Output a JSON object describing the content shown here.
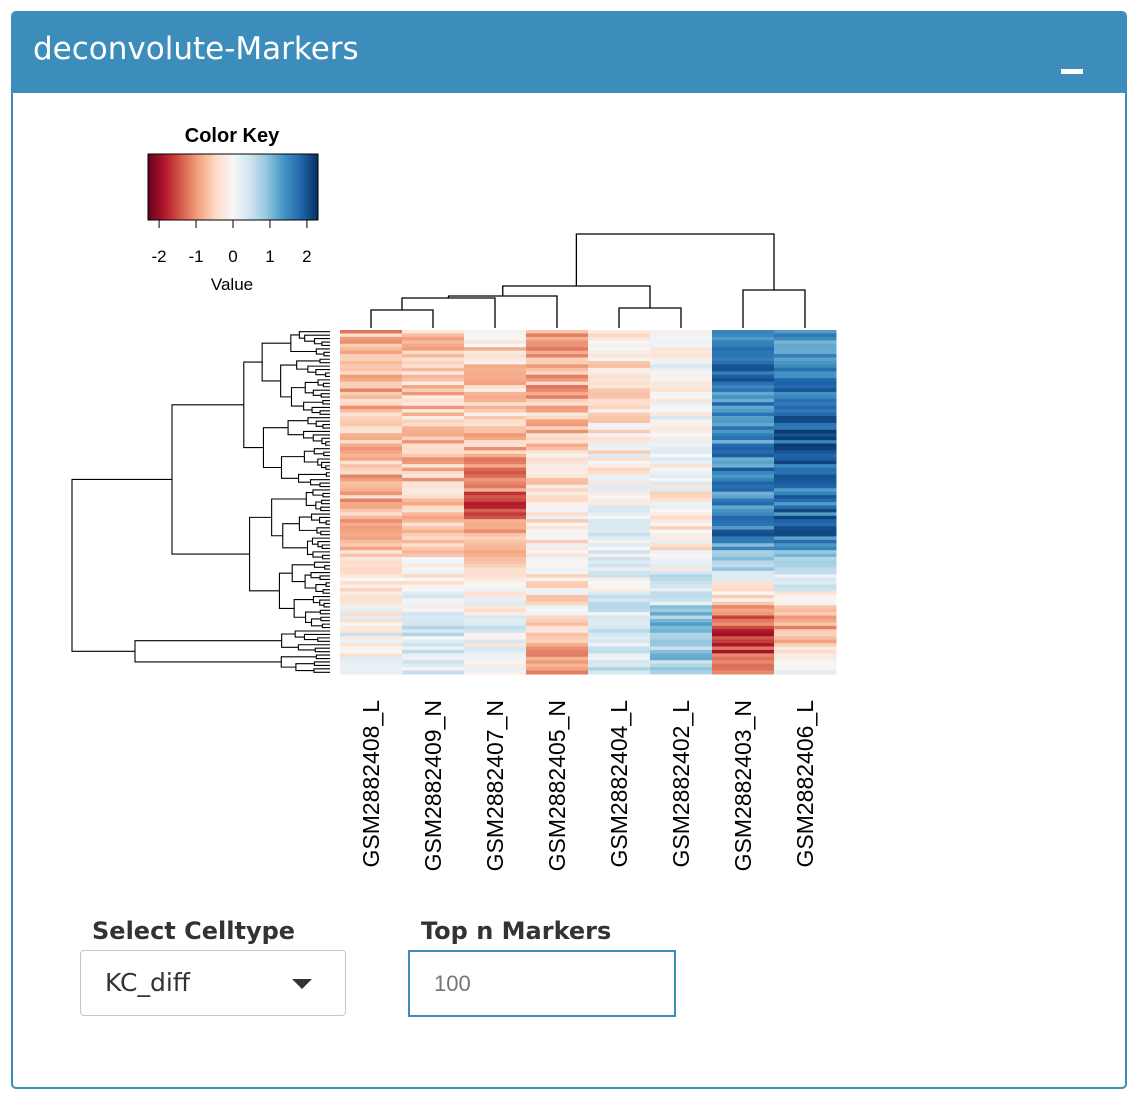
{
  "panel": {
    "title": "deconvolute-Markers",
    "collapse_icon": "minus-icon",
    "colors": {
      "header": "#3c8dbc",
      "accent": "#3c8dbc"
    }
  },
  "chart_data": {
    "type": "heatmap",
    "color_key": {
      "title": "Color Key",
      "xlabel": "Value",
      "ticks": [
        "-2",
        "-1",
        "0",
        "1",
        "2"
      ],
      "range": [
        -2.3,
        2.3
      ],
      "colormap": [
        "#67001f",
        "#b2182b",
        "#d6604d",
        "#f4a582",
        "#fddbc7",
        "#f7f7f7",
        "#d1e5f0",
        "#92c5de",
        "#4393c3",
        "#2166ac",
        "#053061"
      ]
    },
    "columns": [
      "GSM2882408_L",
      "GSM2882409_N",
      "GSM2882407_N",
      "GSM2882405_N",
      "GSM2882404_L",
      "GSM2882402_L",
      "GSM2882403_N",
      "GSM2882406_L"
    ],
    "column_dendrogram": "present",
    "row_dendrogram": "present",
    "n_rows": 100,
    "column_profiles": [
      [
        [
          0,
          -0.8
        ],
        [
          0.3,
          -0.7
        ],
        [
          0.6,
          -0.8
        ],
        [
          0.88,
          0.1
        ],
        [
          1,
          -0.2
        ]
      ],
      [
        [
          0,
          -0.5
        ],
        [
          0.3,
          -0.6
        ],
        [
          0.6,
          -0.7
        ],
        [
          0.88,
          0.5
        ],
        [
          1,
          0.3
        ]
      ],
      [
        [
          0,
          -0.4
        ],
        [
          0.3,
          -0.6
        ],
        [
          0.5,
          -1.4
        ],
        [
          0.88,
          0.2
        ],
        [
          1,
          -0.2
        ]
      ],
      [
        [
          0,
          -1.0
        ],
        [
          0.3,
          -0.6
        ],
        [
          0.5,
          -0.2
        ],
        [
          0.88,
          -0.3
        ],
        [
          1,
          -1.2
        ]
      ],
      [
        [
          0,
          -0.4
        ],
        [
          0.3,
          -0.2
        ],
        [
          0.6,
          0.1
        ],
        [
          0.88,
          0.4
        ],
        [
          1,
          0.3
        ]
      ],
      [
        [
          0,
          0.0
        ],
        [
          0.3,
          0.1
        ],
        [
          0.6,
          -0.3
        ],
        [
          0.88,
          1.0
        ],
        [
          1,
          0.8
        ]
      ],
      [
        [
          0,
          1.7
        ],
        [
          0.3,
          1.5
        ],
        [
          0.6,
          1.6
        ],
        [
          0.88,
          -1.6
        ],
        [
          1,
          -1.4
        ]
      ],
      [
        [
          0,
          1.5
        ],
        [
          0.3,
          1.8
        ],
        [
          0.6,
          1.7
        ],
        [
          0.88,
          -1.0
        ],
        [
          1,
          0.5
        ]
      ]
    ]
  },
  "controls": {
    "celltype_label": "Select Celltype",
    "celltype_value": "KC_diff",
    "dropdown_icon": "caret-down-icon",
    "topn_label": "Top n Markers",
    "topn_placeholder": "100"
  }
}
